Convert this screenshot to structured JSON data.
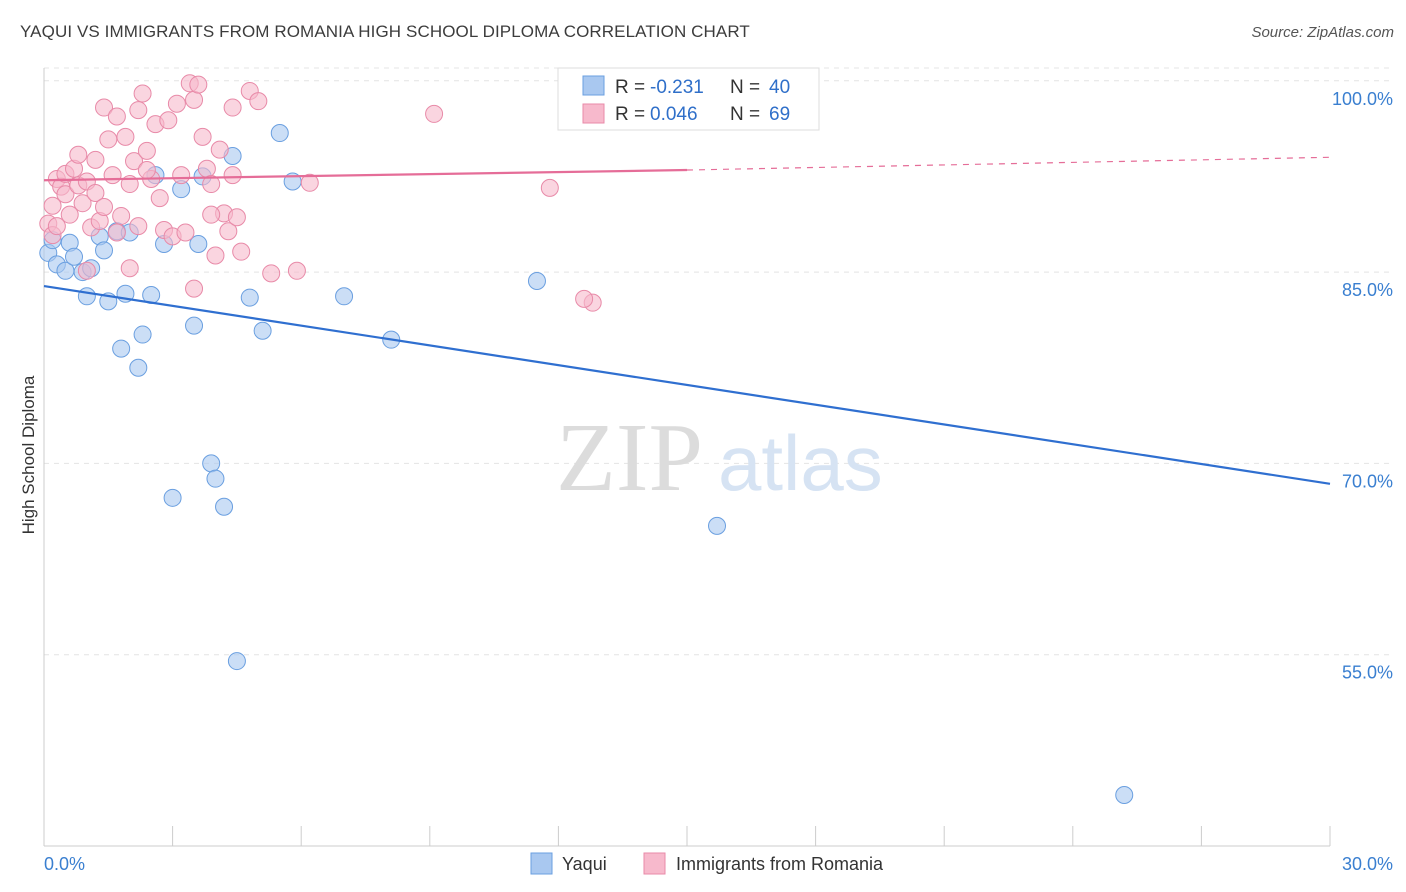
{
  "title": "YAQUI VS IMMIGRANTS FROM ROMANIA HIGH SCHOOL DIPLOMA CORRELATION CHART",
  "source": "Source: ZipAtlas.com",
  "watermark": {
    "zip": "ZIP",
    "atlas": "atlas"
  },
  "chart_data": {
    "type": "scatter",
    "title": "YAQUI VS IMMIGRANTS FROM ROMANIA HIGH SCHOOL DIPLOMA CORRELATION CHART",
    "xlabel": "",
    "ylabel": "High School Diploma",
    "xlim": [
      0,
      30
    ],
    "ylim": [
      40,
      101
    ],
    "x_tick_labels": [
      "0.0%",
      "30.0%"
    ],
    "y_ticks": [
      55,
      70,
      85,
      100
    ],
    "y_tick_labels": [
      "55.0%",
      "70.0%",
      "85.0%",
      "100.0%"
    ],
    "grid": true,
    "legend_position": "top-center",
    "series": [
      {
        "name": "Yaqui",
        "color": "#a9c8f0",
        "edge": "#6a9fe0",
        "line_color": "#2f6fd0",
        "R": "-0.231",
        "N": "40",
        "trend": {
          "x": [
            0,
            30
          ],
          "y": [
            83.9,
            68.4
          ]
        },
        "x": [
          0.1,
          0.3,
          0.5,
          0.6,
          0.7,
          0.9,
          1.0,
          1.1,
          1.3,
          1.4,
          1.5,
          1.7,
          1.8,
          1.9,
          2.0,
          2.2,
          2.3,
          2.5,
          2.6,
          2.8,
          3.0,
          3.2,
          3.5,
          3.6,
          3.7,
          3.9,
          4.0,
          4.2,
          4.4,
          4.5,
          4.8,
          5.1,
          5.5,
          5.8,
          7.0,
          8.1,
          11.5,
          15.7,
          25.2,
          0.2
        ],
        "y": [
          86.5,
          85.6,
          85.1,
          87.3,
          86.2,
          85.0,
          83.1,
          85.3,
          87.8,
          86.7,
          82.7,
          88.2,
          79.0,
          83.3,
          88.1,
          77.5,
          80.1,
          83.2,
          92.6,
          87.2,
          67.3,
          91.5,
          80.8,
          87.2,
          92.5,
          70.0,
          68.8,
          66.6,
          94.1,
          54.5,
          83.0,
          80.4,
          95.9,
          92.1,
          83.1,
          79.7,
          84.3,
          65.1,
          44.0,
          87.5
        ]
      },
      {
        "name": "Immigrants from Romania",
        "color": "#f7b9cc",
        "edge": "#e88aa8",
        "line_color": "#e56d98",
        "R": "0.046",
        "N": "69",
        "trend": {
          "x": [
            0,
            15
          ],
          "y": [
            92.2,
            93.0
          ],
          "dashed_x": [
            15,
            30
          ],
          "dashed_y": [
            93.0,
            94.0
          ]
        },
        "x": [
          0.1,
          0.2,
          0.2,
          0.3,
          0.4,
          0.5,
          0.5,
          0.6,
          0.7,
          0.8,
          0.8,
          0.9,
          1.0,
          1.0,
          1.1,
          1.2,
          1.2,
          1.3,
          1.4,
          1.4,
          1.5,
          1.6,
          1.7,
          1.7,
          1.8,
          1.9,
          2.0,
          2.0,
          2.1,
          2.2,
          2.2,
          2.3,
          2.4,
          2.5,
          2.6,
          2.7,
          2.8,
          2.9,
          3.0,
          3.1,
          3.2,
          3.3,
          3.4,
          3.5,
          3.6,
          3.7,
          3.8,
          3.9,
          4.0,
          4.1,
          4.2,
          4.3,
          4.4,
          4.5,
          4.6,
          4.8,
          5.0,
          5.3,
          5.9,
          6.2,
          9.1,
          11.8,
          12.8,
          12.6,
          3.9,
          4.4,
          2.4,
          3.5,
          0.3
        ],
        "y": [
          88.8,
          90.2,
          87.9,
          92.3,
          91.7,
          91.1,
          92.7,
          89.5,
          93.1,
          91.8,
          94.2,
          90.4,
          92.1,
          85.1,
          88.5,
          93.8,
          91.2,
          89.0,
          90.1,
          97.9,
          95.4,
          92.6,
          88.1,
          97.2,
          89.4,
          95.6,
          91.9,
          85.3,
          93.7,
          97.7,
          88.6,
          99.0,
          94.5,
          92.3,
          96.6,
          90.8,
          88.3,
          96.9,
          87.8,
          98.2,
          92.6,
          88.1,
          99.8,
          98.5,
          99.7,
          95.6,
          93.1,
          91.9,
          86.3,
          94.6,
          89.6,
          88.2,
          97.9,
          89.3,
          86.6,
          99.2,
          98.4,
          84.9,
          85.1,
          92.0,
          97.4,
          91.6,
          82.6,
          82.9,
          89.5,
          92.6,
          93.0,
          83.7,
          88.6
        ]
      }
    ]
  },
  "legend": {
    "r_label": "R =",
    "n_label": "N =",
    "items": [
      {
        "r": "-0.231",
        "n": "40"
      },
      {
        "r": "0.046",
        "n": "69"
      }
    ]
  },
  "bottom_legend": [
    "Yaqui",
    "Immigrants from Romania"
  ]
}
